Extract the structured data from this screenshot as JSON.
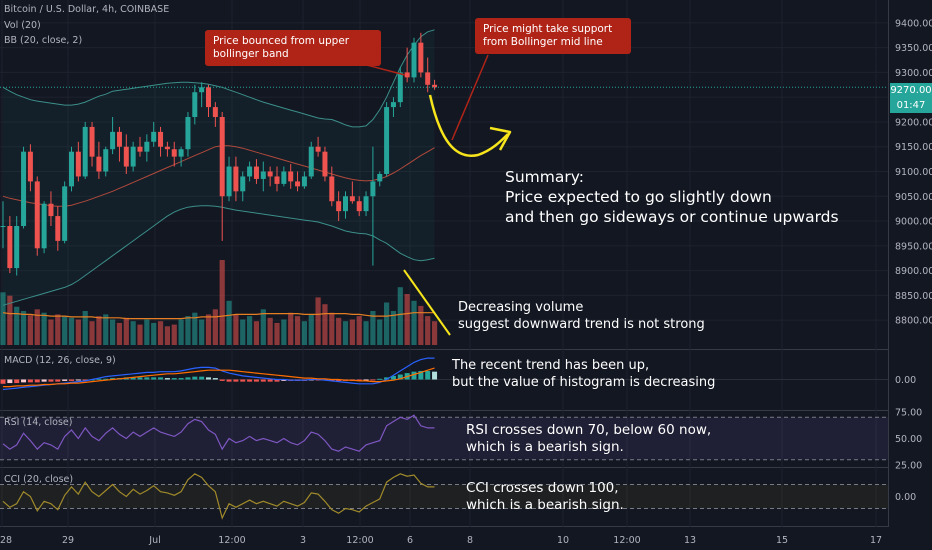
{
  "header": {
    "symbol": "Bitcoin / U.S. Dollar, 4h, COINBASE",
    "vol_indicator": "Vol (20)",
    "bb_indicator": "BB (20, close, 2)"
  },
  "price": {
    "current": "9270.00",
    "countdown": "01:47"
  },
  "chart_data": [
    {
      "type": "candlestick",
      "y_ticks": [
        "9400.00",
        "9350.00",
        "9300.00",
        "9250.00",
        "9200.00",
        "9150.00",
        "9100.00",
        "9050.00",
        "9000.00",
        "8950.00",
        "8900.00",
        "8850.00",
        "8800.00"
      ],
      "x_ticks": [
        "28",
        "29",
        "Jul",
        "12:00",
        "3",
        "12:00",
        "6",
        "8",
        "10",
        "12:00",
        "13",
        "15",
        "17"
      ],
      "ylim": [
        8770,
        9430
      ],
      "candles": [
        [
          8990,
          9040,
          8945,
          8990
        ],
        [
          8990,
          9010,
          8895,
          8905
        ],
        [
          8905,
          9010,
          8890,
          8990
        ],
        [
          8990,
          9150,
          8985,
          9140
        ],
        [
          9140,
          9155,
          9060,
          9080
        ],
        [
          9080,
          9090,
          8930,
          8945
        ],
        [
          8945,
          9040,
          8935,
          9035
        ],
        [
          9035,
          9060,
          8990,
          9010
        ],
        [
          9010,
          9030,
          8940,
          8960
        ],
        [
          8960,
          9080,
          8955,
          9070
        ],
        [
          9070,
          9150,
          9060,
          9140
        ],
        [
          9140,
          9160,
          9080,
          9090
        ],
        [
          9090,
          9200,
          9085,
          9190
        ],
        [
          9190,
          9200,
          9110,
          9130
        ],
        [
          9130,
          9160,
          9085,
          9100
        ],
        [
          9100,
          9150,
          9090,
          9145
        ],
        [
          9145,
          9210,
          9135,
          9180
        ],
        [
          9180,
          9190,
          9120,
          9150
        ],
        [
          9150,
          9175,
          9095,
          9110
        ],
        [
          9110,
          9160,
          9100,
          9150
        ],
        [
          9150,
          9170,
          9130,
          9140
        ],
        [
          9140,
          9175,
          9120,
          9160
        ],
        [
          9160,
          9200,
          9150,
          9180
        ],
        [
          9180,
          9190,
          9130,
          9150
        ],
        [
          9150,
          9160,
          9130,
          9145
        ],
        [
          9145,
          9160,
          9110,
          9130
        ],
        [
          9130,
          9150,
          9110,
          9145
        ],
        [
          9145,
          9220,
          9130,
          9210
        ],
        [
          9210,
          9275,
          9195,
          9260
        ],
        [
          9260,
          9280,
          9230,
          9270
        ],
        [
          9270,
          9275,
          9210,
          9230
        ],
        [
          9230,
          9240,
          9190,
          9210
        ],
        [
          9210,
          9220,
          8960,
          9050
        ],
        [
          9050,
          9130,
          9040,
          9110
        ],
        [
          9110,
          9130,
          9040,
          9060
        ],
        [
          9060,
          9100,
          9040,
          9090
        ],
        [
          9090,
          9120,
          9080,
          9110
        ],
        [
          9110,
          9125,
          9075,
          9085
        ],
        [
          9085,
          9120,
          9060,
          9100
        ],
        [
          9100,
          9110,
          9070,
          9090
        ],
        [
          9090,
          9110,
          9060,
          9075
        ],
        [
          9075,
          9110,
          9070,
          9100
        ],
        [
          9100,
          9115,
          9065,
          9080
        ],
        [
          9080,
          9100,
          9060,
          9070
        ],
        [
          9070,
          9100,
          9065,
          9090
        ],
        [
          9090,
          9160,
          9085,
          9150
        ],
        [
          9150,
          9170,
          9130,
          9140
        ],
        [
          9140,
          9150,
          9080,
          9090
        ],
        [
          9090,
          9110,
          9030,
          9040
        ],
        [
          9040,
          9060,
          9000,
          9020
        ],
        [
          9020,
          9060,
          9005,
          9050
        ],
        [
          9050,
          9080,
          9035,
          9040
        ],
        [
          9040,
          9050,
          9010,
          9020
        ],
        [
          9020,
          9060,
          9010,
          9050
        ],
        [
          9050,
          9150,
          8910,
          9080
        ],
        [
          9080,
          9100,
          9070,
          9095
        ],
        [
          9095,
          9240,
          9090,
          9230
        ],
        [
          9230,
          9250,
          9210,
          9240
        ],
        [
          9240,
          9310,
          9230,
          9300
        ],
        [
          9300,
          9350,
          9280,
          9290
        ],
        [
          9290,
          9370,
          9280,
          9360
        ],
        [
          9360,
          9380,
          9290,
          9300
        ],
        [
          9300,
          9330,
          9260,
          9275
        ],
        [
          9275,
          9285,
          9265,
          9270
        ]
      ],
      "bb_upper": [
        9270,
        9262,
        9255,
        9250,
        9245,
        9242,
        9240,
        9238,
        9236,
        9234,
        9234,
        9236,
        9240,
        9246,
        9252,
        9256,
        9262,
        9264,
        9266,
        9268,
        9270,
        9272,
        9274,
        9276,
        9278,
        9279,
        9280,
        9280,
        9279,
        9278,
        9276,
        9273,
        9270,
        9265,
        9260,
        9255,
        9250,
        9245,
        9240,
        9236,
        9232,
        9228,
        9224,
        9220,
        9216,
        9212,
        9208,
        9206,
        9205,
        9200,
        9194,
        9190,
        9190,
        9192,
        9205,
        9225,
        9250,
        9280,
        9310,
        9335,
        9355,
        9372,
        9382,
        9386
      ],
      "bb_middle": [
        9050,
        9046,
        9043,
        9040,
        9037,
        9035,
        9033,
        9031,
        9030,
        9030,
        9032,
        9036,
        9040,
        9045,
        9050,
        9055,
        9060,
        9066,
        9072,
        9078,
        9084,
        9090,
        9096,
        9102,
        9108,
        9114,
        9120,
        9126,
        9132,
        9138,
        9144,
        9150,
        9152,
        9152,
        9150,
        9147,
        9143,
        9139,
        9135,
        9131,
        9127,
        9123,
        9119,
        9115,
        9111,
        9107,
        9103,
        9099,
        9095,
        9091,
        9087,
        9084,
        9082,
        9081,
        9082,
        9085,
        9090,
        9097,
        9105,
        9114,
        9123,
        9132,
        9140,
        9148
      ],
      "bb_lower": [
        8830,
        8834,
        8838,
        8842,
        8846,
        8850,
        8854,
        8858,
        8862,
        8866,
        8872,
        8880,
        8890,
        8900,
        8910,
        8920,
        8930,
        8940,
        8950,
        8960,
        8970,
        8980,
        8990,
        9000,
        9010,
        9018,
        9024,
        9028,
        9030,
        9031,
        9031,
        9030,
        9028,
        9025,
        9022,
        9020,
        9018,
        9016,
        9014,
        9012,
        9010,
        9008,
        9006,
        9004,
        9002,
        9000,
        8998,
        8994,
        8990,
        8985,
        8980,
        8977,
        8975,
        8974,
        8970,
        8962,
        8955,
        8945,
        8935,
        8928,
        8922,
        8920,
        8922,
        8925
      ],
      "volumes": [
        62,
        58,
        45,
        40,
        35,
        42,
        38,
        30,
        36,
        34,
        32,
        30,
        40,
        28,
        34,
        36,
        30,
        26,
        32,
        28,
        24,
        30,
        26,
        28,
        22,
        24,
        30,
        34,
        38,
        30,
        36,
        42,
        100,
        52,
        36,
        30,
        34,
        28,
        42,
        32,
        26,
        30,
        38,
        34,
        28,
        36,
        56,
        48,
        38,
        32,
        28,
        30,
        34,
        28,
        40,
        30,
        50,
        40,
        68,
        60,
        52,
        46,
        34,
        28
      ],
      "volume_ma": [
        38,
        37,
        37,
        36,
        36,
        35,
        35,
        34,
        34,
        34,
        33,
        33,
        33,
        33,
        32,
        32,
        32,
        32,
        31,
        31,
        31,
        31,
        31,
        31,
        31,
        31,
        31,
        32,
        32,
        33,
        33,
        33,
        34,
        35,
        36,
        36,
        36,
        36,
        37,
        37,
        37,
        37,
        37,
        37,
        36,
        36,
        36,
        37,
        37,
        37,
        37,
        36,
        36,
        35,
        34,
        34,
        34,
        35,
        36,
        37,
        38,
        38,
        38,
        38
      ]
    },
    {
      "type": "bar",
      "name": "MACD (12, 26, close, 9)",
      "ylim": [
        -40,
        40
      ],
      "y_ticks": [
        "0.00"
      ],
      "histogram": [
        -6,
        -5,
        -5,
        -4,
        -4,
        -4,
        -3,
        -3,
        -3,
        -2,
        -2,
        -1,
        -1,
        0,
        1,
        1,
        2,
        2,
        3,
        3,
        3,
        3,
        3,
        3,
        2,
        2,
        2,
        3,
        4,
        4,
        3,
        2,
        -2,
        -3,
        -3,
        -3,
        -3,
        -3,
        -3,
        -3,
        -3,
        -2,
        -2,
        -2,
        -2,
        -1,
        -1,
        -1,
        -2,
        -2,
        -2,
        -2,
        -2,
        -1,
        -1,
        1,
        3,
        5,
        7,
        9,
        11,
        12,
        12,
        11
      ],
      "macd": [
        -14,
        -13,
        -12,
        -11,
        -10,
        -9,
        -8,
        -7,
        -6,
        -5,
        -4,
        -3,
        -2,
        0,
        2,
        4,
        5,
        6,
        7,
        8,
        9,
        10,
        10,
        11,
        11,
        11,
        12,
        14,
        16,
        17,
        17,
        16,
        12,
        9,
        7,
        5,
        4,
        3,
        2,
        1,
        0,
        0,
        -1,
        -1,
        -1,
        0,
        0,
        -1,
        -2,
        -3,
        -4,
        -5,
        -6,
        -6,
        -6,
        -4,
        0,
        6,
        12,
        18,
        24,
        28,
        30,
        30
      ],
      "signal": [
        -10,
        -10,
        -9,
        -9,
        -8,
        -8,
        -7,
        -7,
        -6,
        -6,
        -5,
        -5,
        -4,
        -3,
        -2,
        -1,
        0,
        1,
        2,
        3,
        4,
        5,
        6,
        7,
        8,
        8,
        9,
        10,
        11,
        12,
        13,
        13,
        13,
        13,
        12,
        11,
        10,
        9,
        8,
        7,
        6,
        5,
        4,
        3,
        2,
        2,
        1,
        1,
        0,
        0,
        -1,
        -1,
        -2,
        -2,
        -3,
        -3,
        -2,
        -1,
        1,
        4,
        7,
        10,
        13,
        16
      ]
    },
    {
      "type": "line",
      "name": "RSI (14, close)",
      "ylim": [
        25,
        75
      ],
      "y_ticks": [
        "75.00",
        "50.00",
        "25.00"
      ],
      "values": [
        45,
        40,
        44,
        55,
        48,
        40,
        46,
        44,
        40,
        52,
        58,
        50,
        60,
        52,
        48,
        55,
        60,
        54,
        50,
        56,
        52,
        56,
        60,
        56,
        54,
        52,
        56,
        64,
        68,
        66,
        58,
        54,
        40,
        50,
        46,
        48,
        52,
        48,
        50,
        48,
        46,
        50,
        46,
        44,
        48,
        56,
        54,
        48,
        40,
        38,
        42,
        40,
        38,
        44,
        46,
        48,
        62,
        66,
        70,
        68,
        72,
        62,
        60,
        60
      ]
    },
    {
      "type": "line",
      "name": "CCI (20, close)",
      "ylim": [
        -230,
        230
      ],
      "y_ticks": [
        "0.00"
      ],
      "values": [
        -40,
        -90,
        -60,
        40,
        0,
        -120,
        -40,
        -60,
        -110,
        10,
        80,
        20,
        120,
        40,
        0,
        50,
        100,
        40,
        0,
        60,
        20,
        50,
        90,
        40,
        30,
        10,
        40,
        140,
        190,
        160,
        90,
        40,
        -180,
        -60,
        -90,
        -60,
        -30,
        -60,
        -40,
        -60,
        -80,
        -40,
        -60,
        -80,
        -50,
        30,
        20,
        -40,
        -110,
        -140,
        -100,
        -110,
        -130,
        -80,
        -50,
        -20,
        120,
        160,
        190,
        170,
        180,
        110,
        80,
        80
      ]
    }
  ],
  "annotations": {
    "bubble1": "Price bounced from upper bollinger band",
    "bubble2": "Price might take support from Bollinger mid line",
    "summary": [
      "Summary:",
      "Price expected to go slightly down",
      "and then go sideways or continue upwards"
    ],
    "volume_note": [
      "Decreasing volume",
      "suggest downward trend is not strong"
    ],
    "macd_note": [
      "The recent trend has been up,",
      "but the value of histogram is decreasing"
    ],
    "rsi_note": [
      "RSI crosses down 70, below 60 now,",
      "which is a bearish sign."
    ],
    "cci_note": [
      "CCI crosses down 100,",
      "which is a bearish sign."
    ]
  },
  "colors": {
    "background": "#131722",
    "up": "#26a69a",
    "down": "#ef5350",
    "bb": "#3b8f8a",
    "bb_mid": "#b04a3c",
    "volume_ma": "#e67e22",
    "macd": "#2962ff",
    "signal": "#ff6d00",
    "rsi": "#7e57c2",
    "cci": "#a08a2a",
    "bubble": "#b02418",
    "yellow": "#f7e51b"
  }
}
